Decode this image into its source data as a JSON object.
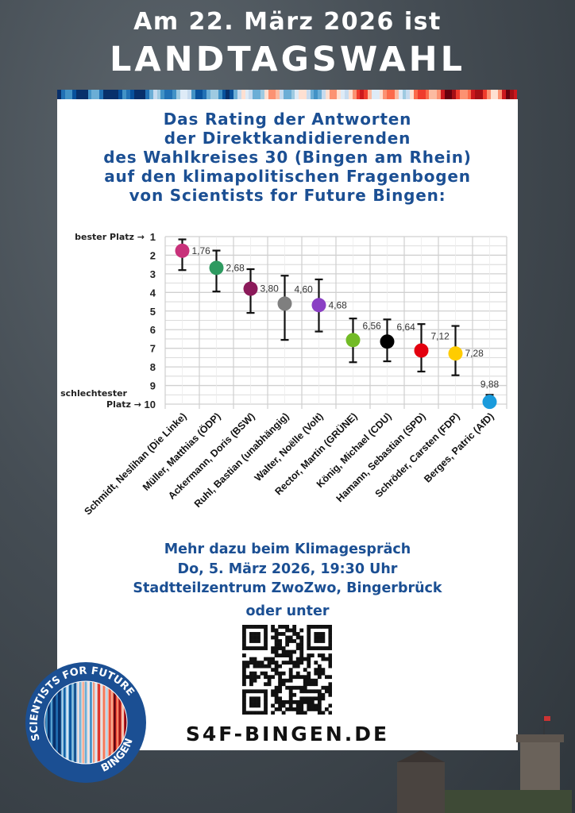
{
  "header": {
    "line1": "Am 22. März 2026 ist",
    "line2": "LANDTAGSWAHL"
  },
  "subtitle": [
    "Das Rating der Antworten",
    "der Direktkandidierenden",
    "des Wahlkreises 30 (Bingen am Rhein)",
    "auf den klimapolitischen Fragenbogen",
    "von Scientists for Future Bingen:"
  ],
  "chart_data": {
    "type": "scatter",
    "title": "",
    "ylim": [
      1,
      10
    ],
    "y_inverted": true,
    "y_ticks": [
      "1",
      "2",
      "3",
      "4",
      "5",
      "6",
      "7",
      "8",
      "9",
      "10"
    ],
    "y_annotations": {
      "top": "bester Platz →",
      "bottom_line1": "schlechtester",
      "bottom_line2": "Platz →"
    },
    "grid": true,
    "categories": [
      "Schmidt, Neslihan (Die Linke)",
      "Müller, Matthias (ÖDP)",
      "Ackermann, Doris (BSW)",
      "Ruhl, Bastian (unabhängig)",
      "Walter, Noëlle (Volt)",
      "Rector, Martin (GRÜNE)",
      "König, Michael (CDU)",
      "Hamann, Sebastian (SPD)",
      "Schröder, Carsten (FDP)",
      "Berges, Patric (AfD)"
    ],
    "values": [
      1.76,
      2.68,
      3.8,
      4.6,
      4.68,
      6.56,
      6.64,
      7.12,
      7.28,
      9.88
    ],
    "labels": [
      "1,76",
      "2,68",
      "3,80",
      "4,60",
      "4,68",
      "6,56",
      "6,64",
      "7,12",
      "7,28",
      "9,88"
    ],
    "error_low": [
      1.15,
      1.75,
      2.75,
      3.1,
      3.3,
      5.4,
      5.45,
      5.7,
      5.8,
      9.5
    ],
    "error_high": [
      2.8,
      3.95,
      5.1,
      6.55,
      6.1,
      7.75,
      7.7,
      8.25,
      8.45,
      10.0
    ],
    "colors": [
      "#c8317a",
      "#2e9a60",
      "#8b1a5a",
      "#7f7f7f",
      "#8a3fc4",
      "#72bb26",
      "#000000",
      "#e3000f",
      "#ffcc00",
      "#1a9bdc"
    ]
  },
  "info": {
    "line1": "Mehr dazu beim Klimagespräch",
    "line2": "Do, 5. März 2026, 19:30 Uhr",
    "line3": "Stadtteilzentrum ZwoZwo, Bingerbrück",
    "line4": "oder unter"
  },
  "domain": "S4F-BINGEN.DE",
  "logo": {
    "top": "SCIENTISTS FOR FUTURE",
    "bottom": "BINGEN"
  },
  "colors": {
    "accent_blue": "#1b4f93"
  }
}
